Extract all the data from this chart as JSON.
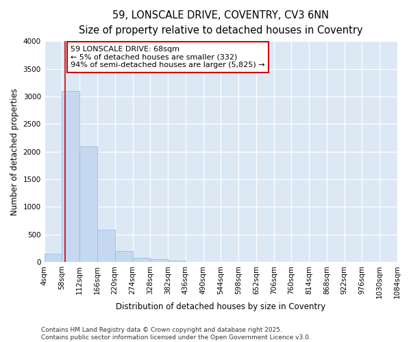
{
  "title_line1": "59, LONSCALE DRIVE, COVENTRY, CV3 6NN",
  "title_line2": "Size of property relative to detached houses in Coventry",
  "xlabel": "Distribution of detached houses by size in Coventry",
  "ylabel": "Number of detached properties",
  "bar_color": "#c5d8f0",
  "bar_edge_color": "#8fb8de",
  "background_color": "#dde8f5",
  "fig_background": "#ffffff",
  "annotation_text": "59 LONSCALE DRIVE: 68sqm\n← 5% of detached houses are smaller (332)\n94% of semi-detached houses are larger (5,825) →",
  "annotation_box_facecolor": "#ffffff",
  "annotation_edge_color": "#cc0000",
  "vline_color": "#cc0000",
  "vline_x": 68,
  "footer_text": "Contains HM Land Registry data © Crown copyright and database right 2025.\nContains public sector information licensed under the Open Government Licence v3.0.",
  "bin_edges": [
    4,
    58,
    112,
    166,
    220,
    274,
    328,
    382,
    436,
    490,
    544,
    598,
    652,
    706,
    760,
    814,
    868,
    922,
    976,
    1030,
    1084
  ],
  "bin_counts": [
    150,
    3100,
    2100,
    580,
    200,
    80,
    50,
    30,
    0,
    0,
    0,
    0,
    0,
    0,
    0,
    0,
    0,
    0,
    0,
    0
  ],
  "ylim": [
    0,
    4000
  ],
  "yticks": [
    0,
    500,
    1000,
    1500,
    2000,
    2500,
    3000,
    3500,
    4000
  ],
  "title_fontsize": 10.5,
  "subtitle_fontsize": 9.5,
  "axis_label_fontsize": 8.5,
  "tick_fontsize": 7.5,
  "footer_fontsize": 6.5,
  "annotation_fontsize": 8
}
